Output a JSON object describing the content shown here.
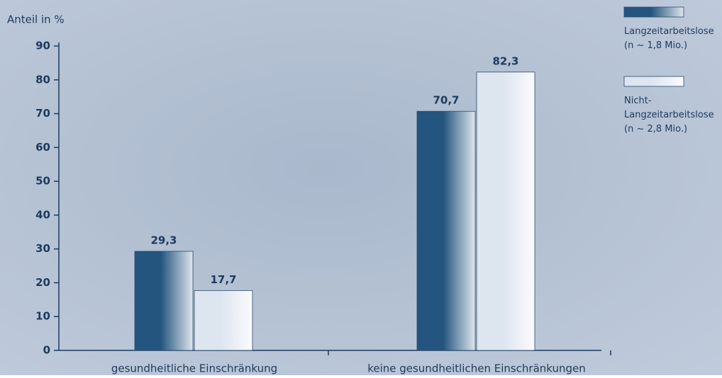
{
  "chart_data": {
    "type": "bar",
    "ylabel": "Anteil in %",
    "categories": [
      "gesundheitliche Einschränkung",
      "keine gesundheitlichen Einschränkungen"
    ],
    "series": [
      {
        "name": "Langzeitarbeitslose\n(n ~ 1,8 Mio.)",
        "color": "#24557f",
        "values": [
          29.3,
          70.7
        ],
        "value_labels": [
          "29,3",
          "70,7"
        ]
      },
      {
        "name": "Nicht-\nLangzeitarbeitslose\n(n ~ 2,8 Mio.)",
        "color": "#dde5ef",
        "values": [
          17.7,
          82.3
        ],
        "value_labels": [
          "17,7",
          "82,3"
        ]
      }
    ],
    "ylim": [
      0,
      90
    ],
    "yticks": [
      0,
      10,
      20,
      30,
      40,
      50,
      60,
      70,
      80,
      90
    ],
    "legend": "right"
  }
}
